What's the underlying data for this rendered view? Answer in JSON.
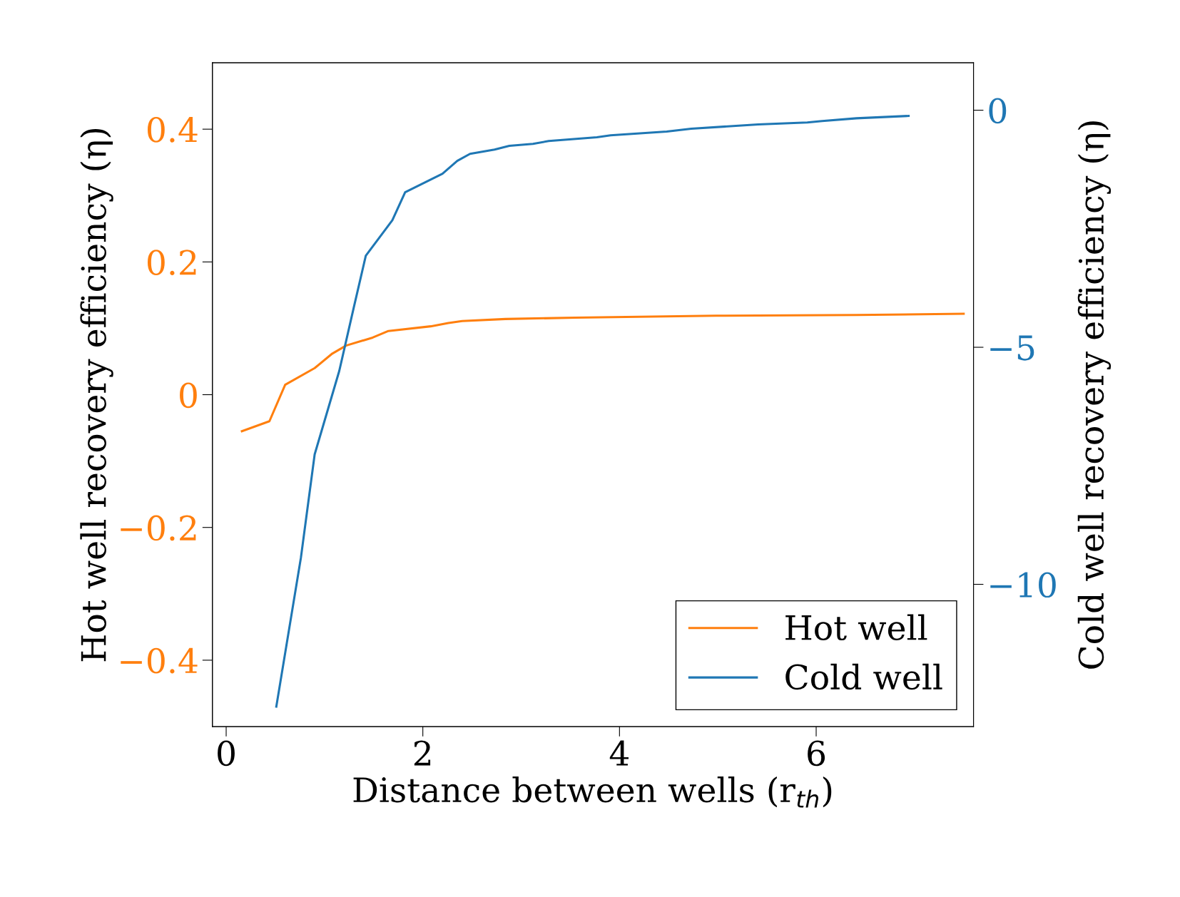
{
  "chart_data": {
    "type": "line",
    "xlabel": "Distance between wells (r$_{th}$)",
    "ylabel": "Hot well recovery efficiency (η)",
    "y2label": "Cold well recovery efficiency (η)",
    "xlim": [
      -0.14,
      7.6
    ],
    "xticks": [
      0,
      2,
      4,
      6
    ],
    "ylim": [
      -0.5,
      0.5
    ],
    "yticks": [
      {
        "value": -0.4,
        "label": "−0.4"
      },
      {
        "value": -0.2,
        "label": "−0.2"
      },
      0,
      0.2,
      0.4
    ],
    "y2lim": [
      -13,
      1
    ],
    "y2ticks": [
      {
        "value": -10,
        "label": "−10"
      },
      {
        "value": -5,
        "label": "−5"
      },
      0
    ],
    "legend": "lower right",
    "grid": false,
    "series": [
      {
        "name": "Hot well",
        "color": "#ff7f0e",
        "x": [
          0.16,
          0.44,
          0.6,
          0.9,
          1.08,
          1.22,
          1.49,
          1.65,
          2.08,
          2.26,
          2.4,
          2.84,
          3.55,
          4.98,
          6.41,
          7.5
        ],
        "values": [
          -0.055,
          -0.04,
          0.015,
          0.04,
          0.062,
          0.074,
          0.086,
          0.096,
          0.103,
          0.108,
          0.111,
          0.114,
          0.116,
          0.119,
          0.12,
          0.122
        ]
      },
      {
        "name": "Cold well",
        "color": "#1f77b4",
        "axis": "y2",
        "x": [
          0.51,
          0.76,
          0.9,
          1.15,
          1.3,
          1.42,
          1.69,
          1.82,
          2.2,
          2.35,
          2.48,
          2.73,
          2.88,
          3.12,
          3.28,
          3.77,
          3.91,
          4.48,
          4.73,
          5.41,
          5.91,
          6.06,
          6.41,
          6.94
        ],
        "values": [
          -12.58,
          -9.44,
          -7.26,
          -5.5,
          -4.14,
          -3.07,
          -2.32,
          -1.73,
          -1.34,
          -1.07,
          -0.92,
          -0.83,
          -0.75,
          -0.71,
          -0.65,
          -0.57,
          -0.53,
          -0.45,
          -0.39,
          -0.3,
          -0.26,
          -0.23,
          -0.17,
          -0.12
        ]
      }
    ]
  }
}
